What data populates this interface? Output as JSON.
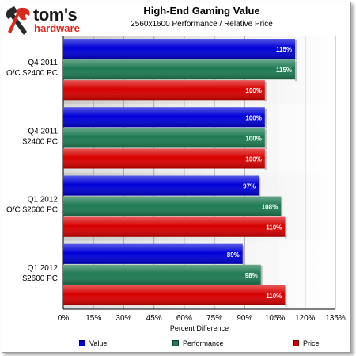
{
  "brand": {
    "name": "tom's",
    "sub": "hardware"
  },
  "chart_data": {
    "type": "bar",
    "orientation": "horizontal",
    "title": "High-End Gaming Value",
    "subtitle": "2560x1600 Performance / Relative Price",
    "xlabel": "Percent Difference",
    "ylabel": "",
    "xlim": [
      0,
      135
    ],
    "xticks": [
      "0%",
      "15%",
      "30%",
      "45%",
      "60%",
      "75%",
      "90%",
      "105%",
      "120%",
      "135%"
    ],
    "grid": true,
    "legend_position": "bottom",
    "categories": [
      [
        "Q4 2011",
        "O/C $2400 PC"
      ],
      [
        "Q4 2011",
        "$2400 PC"
      ],
      [
        "Q1 2012",
        "O/C $2600 PC"
      ],
      [
        "Q1 2012",
        "$2600 PC"
      ]
    ],
    "series": [
      {
        "name": "Value",
        "color": "#0000d8",
        "values": [
          115,
          100,
          97,
          89
        ],
        "labels": [
          "115%",
          "100%",
          "97%",
          "89%"
        ]
      },
      {
        "name": "Performance",
        "color": "#1e7a52",
        "values": [
          115,
          100,
          108,
          98
        ],
        "labels": [
          "115%",
          "100%",
          "108%",
          "98%"
        ]
      },
      {
        "name": "Price",
        "color": "#d80000",
        "values": [
          100,
          100,
          110,
          110
        ],
        "labels": [
          "100%",
          "100%",
          "110%",
          "110%"
        ]
      }
    ]
  }
}
